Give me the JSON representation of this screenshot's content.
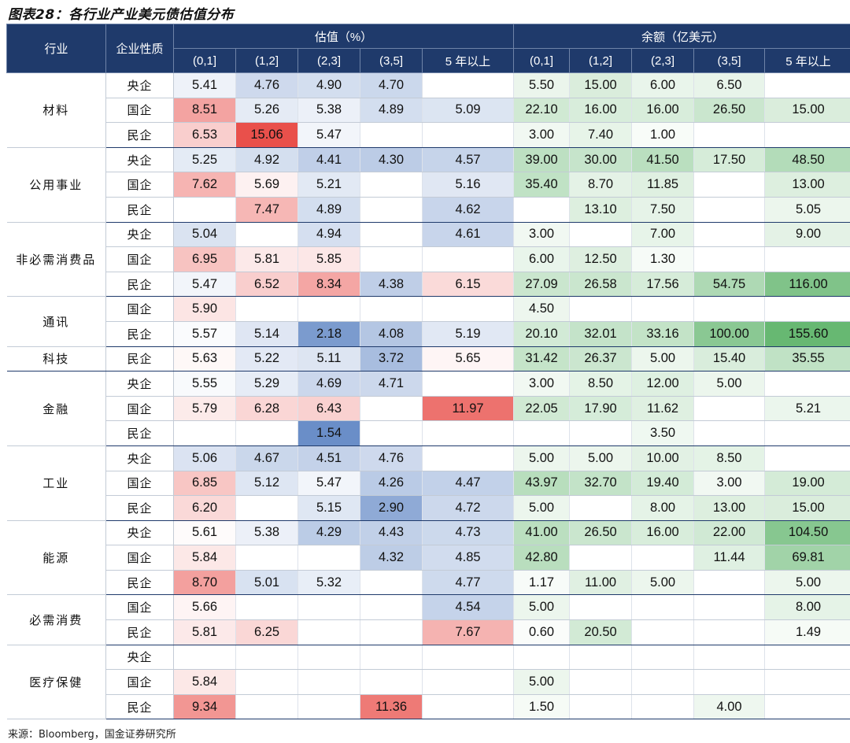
{
  "title": "图表28：各行业产业美元债估值分布",
  "source": "来源：Bloomberg，国金证券研究所",
  "header": {
    "industry": "行业",
    "ownership": "企业性质",
    "valuation": "估值（%）",
    "balance": "余额（亿美元）",
    "buckets": [
      "(0,1]",
      "(1,2]",
      "(2,3]",
      "(3,5]",
      "5 年以上"
    ]
  },
  "groups": [
    {
      "industry": "材料",
      "rows": [
        {
          "type": "央企",
          "val": [
            "5.41",
            "4.76",
            "4.90",
            "4.70",
            ""
          ],
          "bal": [
            "5.50",
            "15.00",
            "6.00",
            "6.50",
            ""
          ]
        },
        {
          "type": "国企",
          "val": [
            "8.51",
            "5.26",
            "5.38",
            "4.89",
            "5.09"
          ],
          "bal": [
            "22.10",
            "16.00",
            "16.00",
            "26.50",
            "15.00"
          ]
        },
        {
          "type": "民企",
          "val": [
            "6.53",
            "15.06",
            "5.47",
            "",
            ""
          ],
          "bal": [
            "3.00",
            "7.40",
            "1.00",
            "",
            ""
          ]
        }
      ]
    },
    {
      "industry": "公用事业",
      "rows": [
        {
          "type": "央企",
          "val": [
            "5.25",
            "4.92",
            "4.41",
            "4.30",
            "4.57"
          ],
          "bal": [
            "39.00",
            "30.00",
            "41.50",
            "17.50",
            "48.50"
          ]
        },
        {
          "type": "国企",
          "val": [
            "7.62",
            "5.69",
            "5.21",
            "",
            "5.16"
          ],
          "bal": [
            "35.40",
            "8.70",
            "11.85",
            "",
            "13.00"
          ]
        },
        {
          "type": "民企",
          "val": [
            "",
            "7.47",
            "4.89",
            "",
            "4.62"
          ],
          "bal": [
            "",
            "13.10",
            "7.50",
            "",
            "5.05"
          ]
        }
      ]
    },
    {
      "industry": "非必需消费品",
      "rows": [
        {
          "type": "央企",
          "val": [
            "5.04",
            "",
            "4.94",
            "",
            "4.61"
          ],
          "bal": [
            "3.00",
            "",
            "7.00",
            "",
            "9.00"
          ]
        },
        {
          "type": "国企",
          "val": [
            "6.95",
            "5.81",
            "5.85",
            "",
            ""
          ],
          "bal": [
            "6.00",
            "12.50",
            "1.30",
            "",
            ""
          ]
        },
        {
          "type": "民企",
          "val": [
            "5.47",
            "6.52",
            "8.34",
            "4.38",
            "6.15"
          ],
          "bal": [
            "27.09",
            "26.58",
            "17.56",
            "54.75",
            "116.00"
          ]
        }
      ]
    },
    {
      "industry": "通讯",
      "rows": [
        {
          "type": "国企",
          "val": [
            "5.90",
            "",
            "",
            "",
            ""
          ],
          "bal": [
            "4.50",
            "",
            "",
            "",
            ""
          ]
        },
        {
          "type": "民企",
          "val": [
            "5.57",
            "5.14",
            "2.18",
            "4.08",
            "5.19"
          ],
          "bal": [
            "20.10",
            "32.01",
            "33.16",
            "100.00",
            "155.60"
          ]
        }
      ]
    },
    {
      "industry": "科技",
      "rows": [
        {
          "type": "民企",
          "val": [
            "5.63",
            "5.22",
            "5.11",
            "3.72",
            "5.65"
          ],
          "bal": [
            "31.42",
            "26.37",
            "5.00",
            "15.40",
            "35.55"
          ]
        }
      ]
    },
    {
      "industry": "金融",
      "rows": [
        {
          "type": "央企",
          "val": [
            "5.55",
            "5.29",
            "4.69",
            "4.71",
            ""
          ],
          "bal": [
            "3.00",
            "8.50",
            "12.00",
            "5.00",
            ""
          ]
        },
        {
          "type": "国企",
          "val": [
            "5.79",
            "6.28",
            "6.43",
            "",
            "11.97"
          ],
          "bal": [
            "22.05",
            "17.90",
            "11.62",
            "",
            "5.21"
          ]
        },
        {
          "type": "民企",
          "val": [
            "",
            "",
            "1.54",
            "",
            ""
          ],
          "bal": [
            "",
            "",
            "3.50",
            "",
            ""
          ]
        }
      ]
    },
    {
      "industry": "工业",
      "rows": [
        {
          "type": "央企",
          "val": [
            "5.06",
            "4.67",
            "4.51",
            "4.76",
            ""
          ],
          "bal": [
            "5.00",
            "5.00",
            "10.00",
            "8.50",
            ""
          ]
        },
        {
          "type": "国企",
          "val": [
            "6.85",
            "5.12",
            "5.47",
            "4.26",
            "4.47"
          ],
          "bal": [
            "43.97",
            "32.70",
            "19.40",
            "3.00",
            "19.00"
          ]
        },
        {
          "type": "民企",
          "val": [
            "6.20",
            "",
            "5.15",
            "2.90",
            "4.72"
          ],
          "bal": [
            "5.00",
            "",
            "8.00",
            "13.00",
            "15.00"
          ]
        }
      ]
    },
    {
      "industry": "能源",
      "rows": [
        {
          "type": "央企",
          "val": [
            "5.61",
            "5.38",
            "4.29",
            "4.43",
            "4.73"
          ],
          "bal": [
            "41.00",
            "26.50",
            "16.00",
            "22.00",
            "104.50"
          ]
        },
        {
          "type": "国企",
          "val": [
            "5.84",
            "",
            "",
            "4.32",
            "4.85"
          ],
          "bal": [
            "42.80",
            "",
            "",
            "11.44",
            "69.81"
          ]
        },
        {
          "type": "民企",
          "val": [
            "8.70",
            "5.01",
            "5.32",
            "",
            "4.77"
          ],
          "bal": [
            "1.17",
            "11.00",
            "5.00",
            "",
            "5.00"
          ]
        }
      ]
    },
    {
      "industry": "必需消费",
      "rows": [
        {
          "type": "国企",
          "val": [
            "5.66",
            "",
            "",
            "",
            "4.54"
          ],
          "bal": [
            "5.00",
            "",
            "",
            "",
            "8.00"
          ]
        },
        {
          "type": "民企",
          "val": [
            "5.81",
            "6.25",
            "",
            "",
            "7.67"
          ],
          "bal": [
            "0.60",
            "20.50",
            "",
            "",
            "1.49"
          ]
        }
      ]
    },
    {
      "industry": "医疗保健",
      "rows": [
        {
          "type": "央企",
          "val": [
            "",
            "",
            "",
            "",
            ""
          ],
          "bal": [
            "",
            "",
            "",
            "",
            ""
          ]
        },
        {
          "type": "国企",
          "val": [
            "5.84",
            "",
            "",
            "",
            ""
          ],
          "bal": [
            "5.00",
            "",
            "",
            "",
            ""
          ]
        },
        {
          "type": "民企",
          "val": [
            "9.34",
            "",
            "",
            "11.36",
            ""
          ],
          "bal": [
            "1.50",
            "",
            "",
            "4.00",
            ""
          ]
        }
      ]
    }
  ],
  "colors": {
    "header_bg": "#1f3a6b",
    "high_red": "#e9504b",
    "low_blue": "#6a8ec8",
    "high_green": "#5fb46b"
  }
}
